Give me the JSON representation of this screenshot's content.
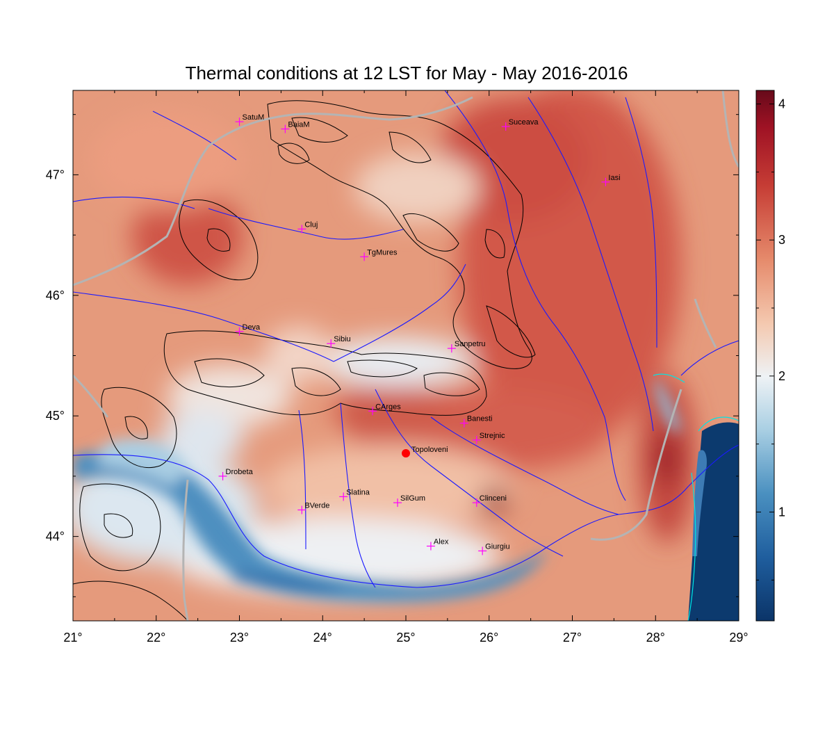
{
  "title": "Thermal conditions at 12 LST for May - May  2016-2016",
  "map": {
    "lon_range": [
      21,
      29
    ],
    "lat_range": [
      43.3,
      47.7
    ],
    "lon_ticks": [
      {
        "value": 21,
        "label": "21°"
      },
      {
        "value": 22,
        "label": "22°"
      },
      {
        "value": 23,
        "label": "23°"
      },
      {
        "value": 24,
        "label": "24°"
      },
      {
        "value": 25,
        "label": "25°"
      },
      {
        "value": 26,
        "label": "26°"
      },
      {
        "value": 27,
        "label": "27°"
      },
      {
        "value": 28,
        "label": "28°"
      },
      {
        "value": 29,
        "label": "29°"
      }
    ],
    "lat_ticks": [
      {
        "value": 44,
        "label": "44°"
      },
      {
        "value": 45,
        "label": "45°"
      },
      {
        "value": 46,
        "label": "46°"
      },
      {
        "value": 47,
        "label": "47°"
      }
    ],
    "colors": {
      "marker": "#ff00ff",
      "highlight": "#ff0000",
      "river": "#1a1aff",
      "border": "#b4b4b4",
      "contour": "#000000",
      "coast": "#00e5e5"
    }
  },
  "colorbar": {
    "range": [
      0.2,
      4.1
    ],
    "ticks": [
      {
        "value": 1,
        "label": "1"
      },
      {
        "value": 2,
        "label": "2"
      },
      {
        "value": 3,
        "label": "3"
      },
      {
        "value": 4,
        "label": "4"
      }
    ]
  },
  "stations": [
    {
      "name": "SatuM",
      "lon": 23.0,
      "lat": 47.44
    },
    {
      "name": "BaiaM",
      "lon": 23.55,
      "lat": 47.38
    },
    {
      "name": "Suceava",
      "lon": 26.2,
      "lat": 47.4
    },
    {
      "name": "Iasi",
      "lon": 27.4,
      "lat": 46.94
    },
    {
      "name": "Cluj",
      "lon": 23.75,
      "lat": 46.55
    },
    {
      "name": "TgMures",
      "lon": 24.5,
      "lat": 46.32
    },
    {
      "name": "Deva",
      "lon": 23.0,
      "lat": 45.7
    },
    {
      "name": "Sibiu",
      "lon": 24.1,
      "lat": 45.6
    },
    {
      "name": "Sanpetru",
      "lon": 25.55,
      "lat": 45.56
    },
    {
      "name": "CArges",
      "lon": 24.6,
      "lat": 45.04
    },
    {
      "name": "Banesti",
      "lon": 25.7,
      "lat": 44.94
    },
    {
      "name": "Strejnic",
      "lon": 25.85,
      "lat": 44.8
    },
    {
      "name": "Drobeta",
      "lon": 22.8,
      "lat": 44.5
    },
    {
      "name": "Slatina",
      "lon": 24.25,
      "lat": 44.33
    },
    {
      "name": "SilGum",
      "lon": 24.9,
      "lat": 44.28
    },
    {
      "name": "BVerde",
      "lon": 23.75,
      "lat": 44.22
    },
    {
      "name": "Clinceni",
      "lon": 25.85,
      "lat": 44.28
    },
    {
      "name": "Alex",
      "lon": 25.3,
      "lat": 43.92
    },
    {
      "name": "Giurgiu",
      "lon": 25.92,
      "lat": 43.88
    }
  ],
  "highlight_station": {
    "name": "Topoloveni",
    "lon": 25.0,
    "lat": 44.69
  }
}
